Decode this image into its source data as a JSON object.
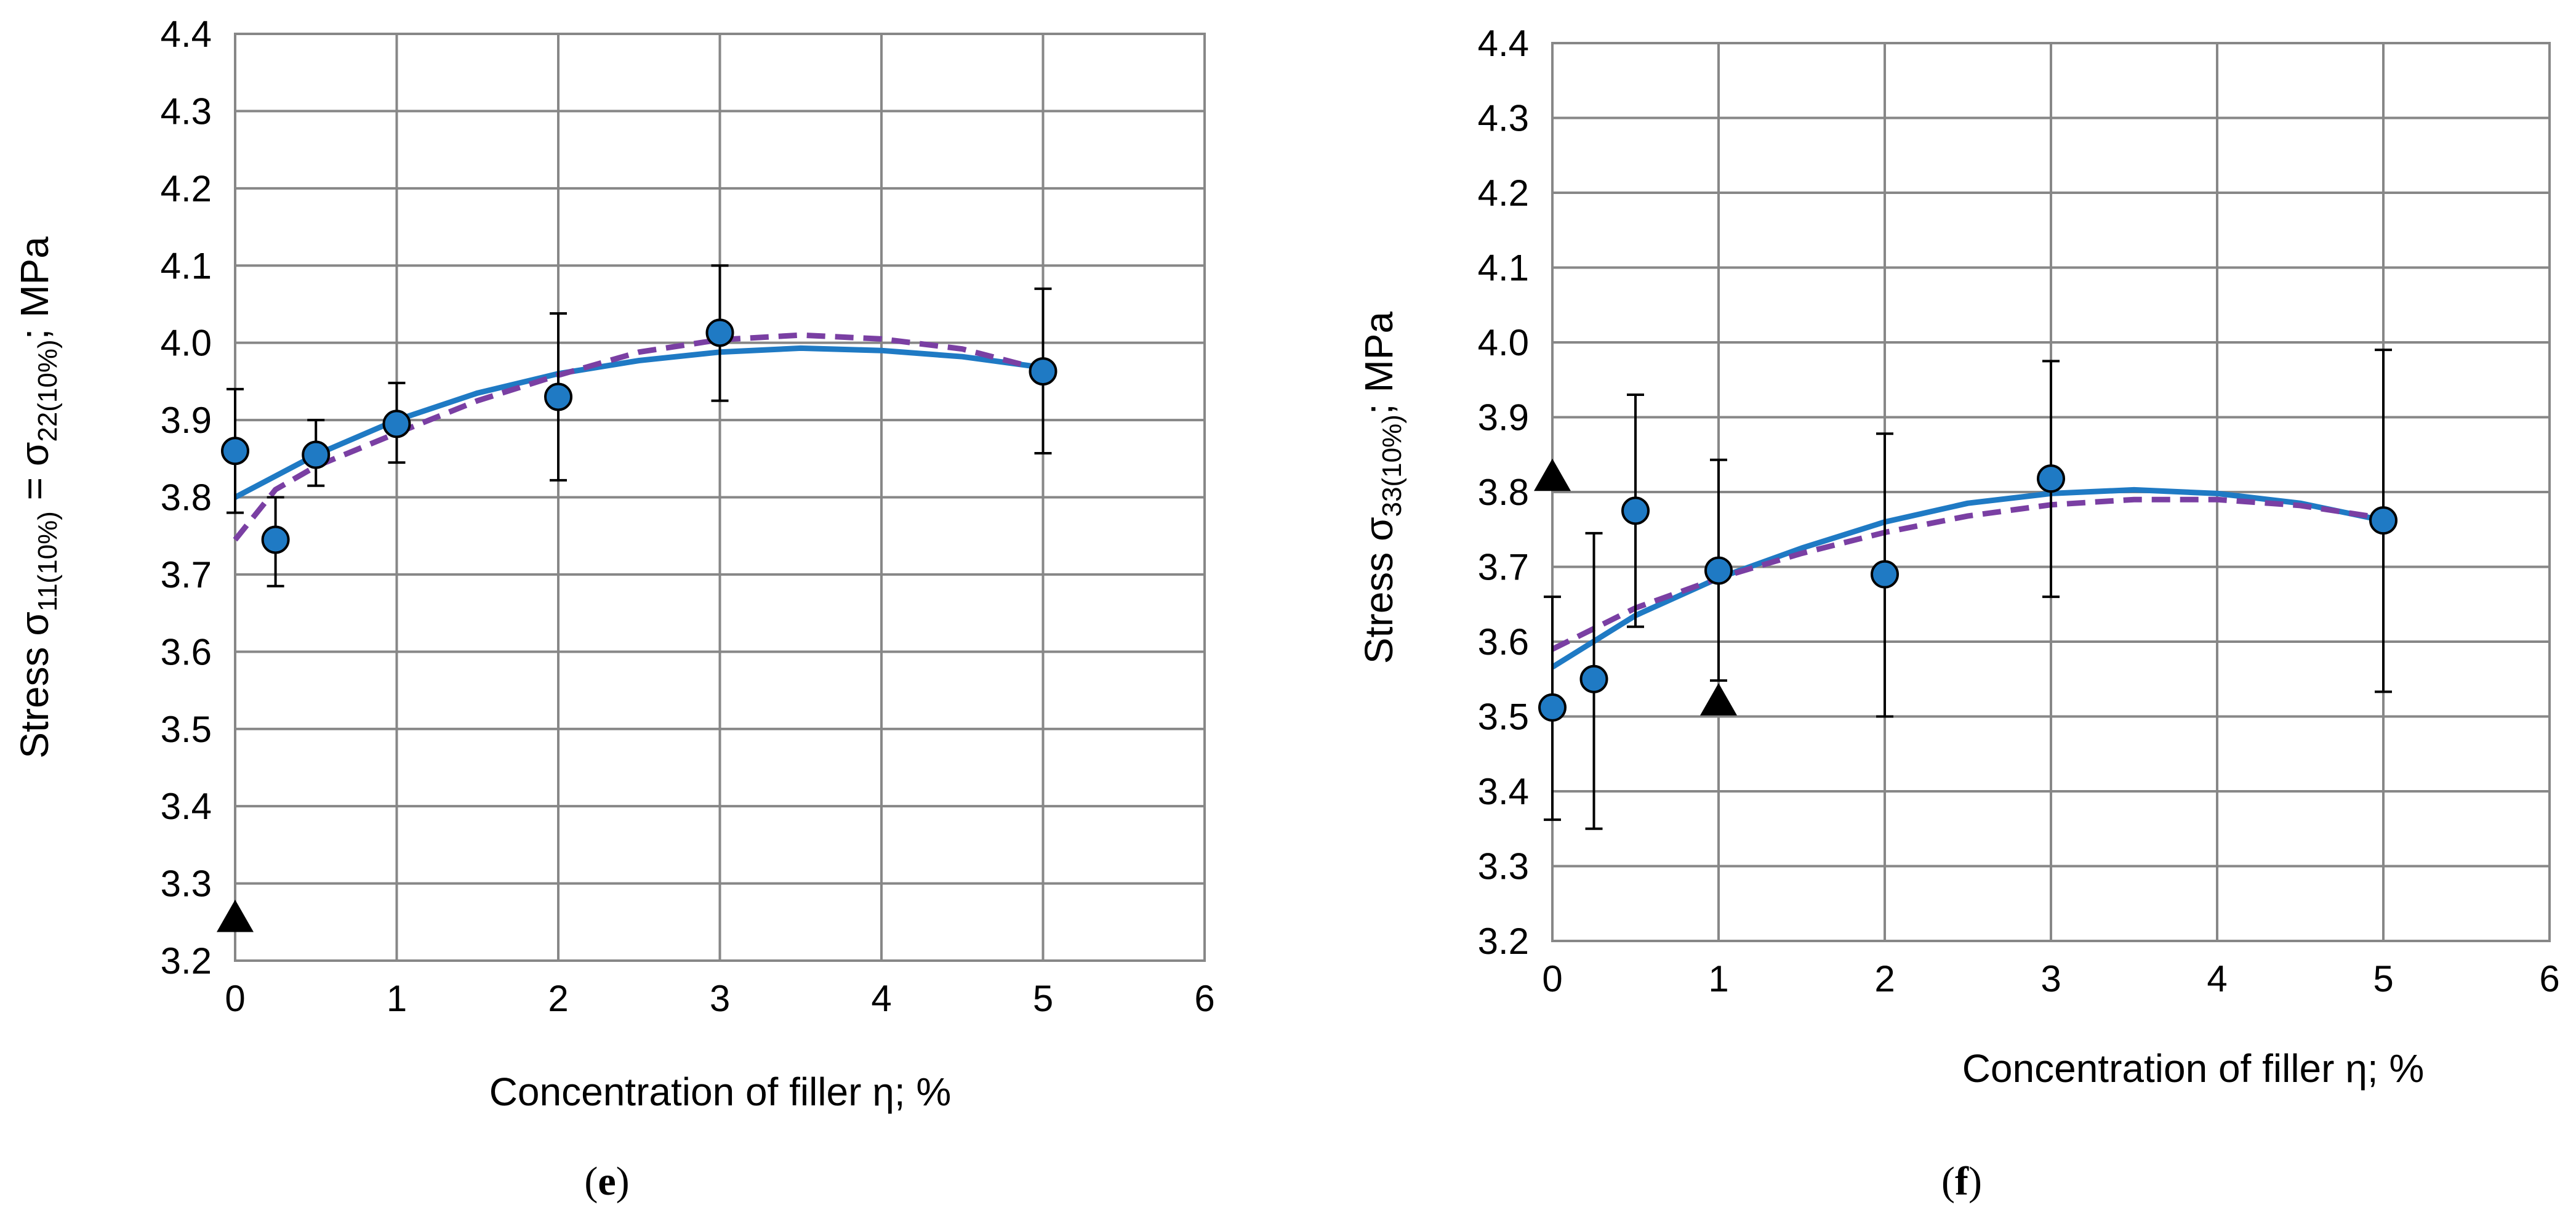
{
  "chart_data": [
    {
      "id": "e",
      "type": "scatter",
      "panel_label": "(e)",
      "panel_label_letter": "e",
      "xlabel": "Concentration of filler η; %",
      "ylabel": {
        "prefix": "Stress σ",
        "sub1": "11(10%)",
        "mid": " = σ",
        "sub2": "22(10%)",
        "suffix": "; MPa"
      },
      "xlim": [
        0,
        6
      ],
      "ylim": [
        3.2,
        4.4
      ],
      "xticks": [
        "0",
        "1",
        "2",
        "3",
        "4",
        "5",
        "6"
      ],
      "yticks": [
        "3.2",
        "3.3",
        "3.4",
        "3.5",
        "3.6",
        "3.7",
        "3.8",
        "3.9",
        "4.0",
        "4.1",
        "4.2",
        "4.3",
        "4.4"
      ],
      "grid": true,
      "points": [
        {
          "x": 0,
          "y": 3.86,
          "lo": 3.78,
          "hi": 3.94
        },
        {
          "x": 0.25,
          "y": 3.745,
          "lo": 3.685,
          "hi": 3.8
        },
        {
          "x": 0.5,
          "y": 3.855,
          "lo": 3.815,
          "hi": 3.9
        },
        {
          "x": 1,
          "y": 3.895,
          "lo": 3.845,
          "hi": 3.948
        },
        {
          "x": 2,
          "y": 3.93,
          "lo": 3.822,
          "hi": 4.038
        },
        {
          "x": 3,
          "y": 4.013,
          "lo": 3.925,
          "hi": 4.1
        },
        {
          "x": 5,
          "y": 3.963,
          "lo": 3.857,
          "hi": 4.07
        }
      ],
      "triangles": [
        {
          "x": 0,
          "y": 3.255
        }
      ],
      "solid_curve": {
        "x": [
          0,
          0.5,
          1,
          1.5,
          2,
          2.5,
          3,
          3.5,
          4,
          4.5,
          5
        ],
        "y": [
          3.8,
          3.855,
          3.9,
          3.935,
          3.96,
          3.977,
          3.988,
          3.993,
          3.99,
          3.982,
          3.968
        ]
      },
      "dashed_curve": {
        "x": [
          0,
          0.25,
          0.5,
          1,
          1.5,
          2,
          2.5,
          3,
          3.5,
          4,
          4.5,
          5
        ],
        "y": [
          3.745,
          3.81,
          3.84,
          3.883,
          3.925,
          3.958,
          3.988,
          4.004,
          4.01,
          4.005,
          3.992,
          3.965
        ]
      },
      "colors": {
        "marker": "#1f7ac4",
        "solid": "#1f7ac4",
        "dashed": "#7a3fa3",
        "triangle": "#000000"
      }
    },
    {
      "id": "f",
      "type": "scatter",
      "panel_label": "(f)",
      "panel_label_letter": "f",
      "xlabel": "Concentration of filler η; %",
      "ylabel": {
        "prefix": "Stress σ",
        "sub1": "33(10%)",
        "suffix": "; MPa"
      },
      "xlim": [
        0,
        6
      ],
      "ylim": [
        3.2,
        4.4
      ],
      "xticks": [
        "0",
        "1",
        "2",
        "3",
        "4",
        "5",
        "6"
      ],
      "yticks": [
        "3.2",
        "3.3",
        "3.4",
        "3.5",
        "3.6",
        "3.7",
        "3.8",
        "3.9",
        "4.0",
        "4.1",
        "4.2",
        "4.3",
        "4.4"
      ],
      "grid": true,
      "points": [
        {
          "x": 0,
          "y": 3.512,
          "lo": 3.362,
          "hi": 3.66
        },
        {
          "x": 0.25,
          "y": 3.55,
          "lo": 3.35,
          "hi": 3.745
        },
        {
          "x": 0.5,
          "y": 3.775,
          "lo": 3.62,
          "hi": 3.93
        },
        {
          "x": 1,
          "y": 3.695,
          "lo": 3.548,
          "hi": 3.843
        },
        {
          "x": 2,
          "y": 3.69,
          "lo": 3.5,
          "hi": 3.878
        },
        {
          "x": 3,
          "y": 3.818,
          "lo": 3.66,
          "hi": 3.975
        },
        {
          "x": 5,
          "y": 3.762,
          "lo": 3.533,
          "hi": 3.99
        }
      ],
      "triangles": [
        {
          "x": 0,
          "y": 3.82
        },
        {
          "x": 1,
          "y": 3.52
        }
      ],
      "solid_curve": {
        "x": [
          0,
          0.5,
          1,
          1.5,
          2,
          2.5,
          3,
          3.5,
          4,
          4.5,
          5
        ],
        "y": [
          3.566,
          3.635,
          3.685,
          3.725,
          3.76,
          3.785,
          3.798,
          3.803,
          3.798,
          3.785,
          3.762
        ]
      },
      "dashed_curve": {
        "x": [
          0,
          0.5,
          1,
          1.5,
          2,
          2.5,
          3,
          3.5,
          4,
          4.5,
          5
        ],
        "y": [
          3.59,
          3.645,
          3.685,
          3.718,
          3.746,
          3.768,
          3.783,
          3.79,
          3.79,
          3.782,
          3.765
        ]
      },
      "colors": {
        "marker": "#1f7ac4",
        "solid": "#1f7ac4",
        "dashed": "#7a3fa3",
        "triangle": "#000000"
      }
    }
  ]
}
